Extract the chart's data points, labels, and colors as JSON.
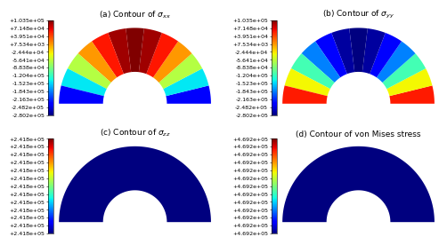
{
  "colorbar_ticks_sxx_syy": [
    "+1.035e+05",
    "+7.148e+04",
    "+3.951e+04",
    "+7.534e+03",
    "-2.444e+04",
    "-5.641e+04",
    "-8.838e+04",
    "-1.204e+05",
    "-1.523e+05",
    "-1.843e+05",
    "-2.163e+05",
    "-2.482e+05",
    "-2.802e+05"
  ],
  "colorbar_ticks_szz": [
    "+2.418e+05",
    "+2.418e+05",
    "+2.418e+05",
    "+2.418e+05",
    "+2.418e+05",
    "+2.418e+05",
    "+2.418e+05",
    "+2.418e+05",
    "+2.418e+05",
    "+2.418e+05",
    "+2.418e+05",
    "+2.418e+05",
    "+2.418e+05"
  ],
  "colorbar_ticks_vm": [
    "+4.692e+05",
    "+4.692e+05",
    "+4.692e+05",
    "+4.692e+05",
    "+4.692e+05",
    "+4.692e+05",
    "+4.692e+05",
    "+4.692e+05",
    "+4.692e+05",
    "+4.692e+05",
    "+4.692e+05",
    "+4.692e+05",
    "+4.692e+05"
  ],
  "vmin_sxx_syy": -280200,
  "vmax_sxx_syy": 103500,
  "r_inner": 0.42,
  "r_outer": 1.0,
  "subtitle_a": "(a) Contour of $\\sigma_{xx}$",
  "subtitle_b": "(b) Contour of $\\sigma_{yy}$",
  "subtitle_c": "(c) Contour of $\\sigma_{zz}$",
  "subtitle_d": "(d) Contour of von Mises stress",
  "bg_color": "#ffffff",
  "colormap": "jet",
  "szz_color": "#00007f",
  "vm_color": "#00007f",
  "n_segs": 13,
  "tick_fontsize": 4.5,
  "subtitle_fontsize": 6.5
}
